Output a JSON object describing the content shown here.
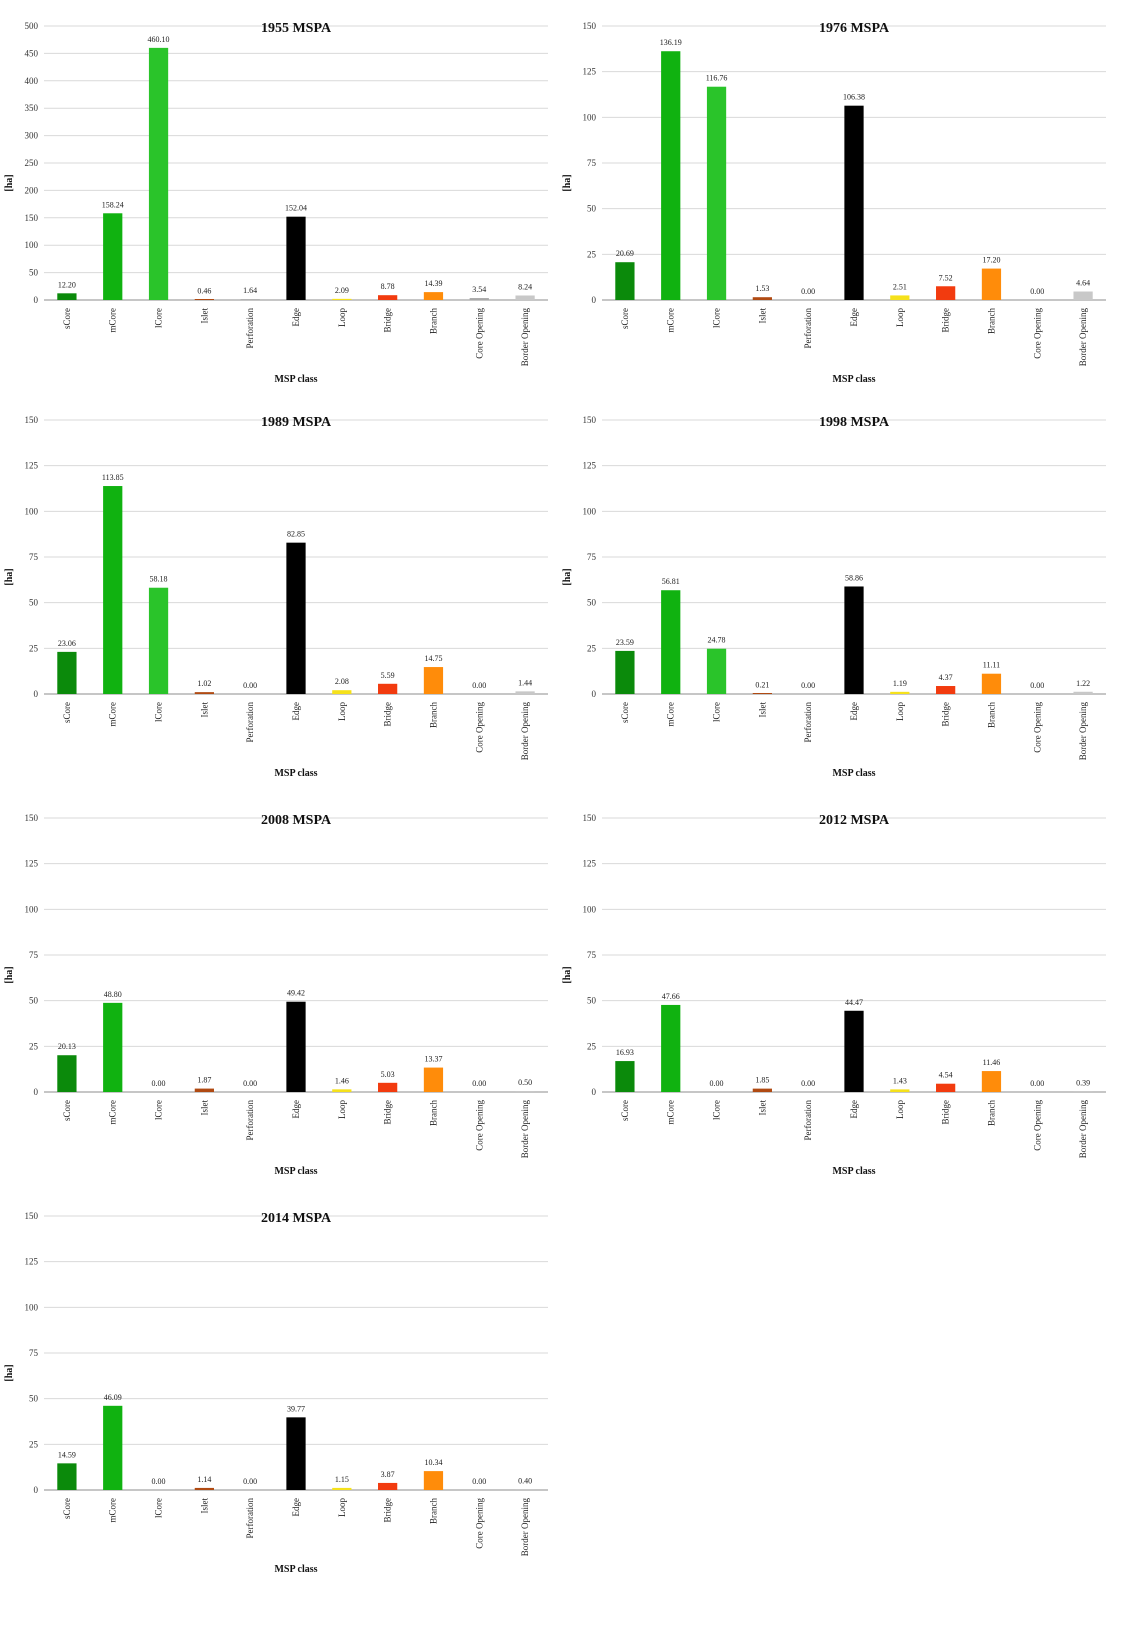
{
  "xlabel": "MSP class",
  "ylabel": "[ha]",
  "categories": [
    "sCore",
    "mCore",
    "lCore",
    "Islet",
    "Perforation",
    "Edge",
    "Loop",
    "Bridge",
    "Branch",
    "Core Opening",
    "Border Opening"
  ],
  "colors": [
    "#0b8a0b",
    "#10b210",
    "#2ac42a",
    "#b04a12",
    "#b3b3b3",
    "#000000",
    "#f5e11b",
    "#f23b0f",
    "#ff8c0a",
    "#a8a8a8",
    "#c8c8c8"
  ],
  "chart_data": [
    {
      "type": "bar",
      "title": "1955 MSPA",
      "ylim": [
        0,
        500
      ],
      "yticks": [
        0,
        50,
        100,
        150,
        200,
        250,
        300,
        350,
        400,
        450,
        500
      ],
      "categories": [
        "sCore",
        "mCore",
        "lCore",
        "Islet",
        "Perforation",
        "Edge",
        "Loop",
        "Bridge",
        "Branch",
        "Core Opening",
        "Border Opening"
      ],
      "values": [
        12.2,
        158.24,
        460.1,
        0.46,
        1.64,
        152.04,
        2.09,
        8.78,
        14.39,
        3.54,
        8.24
      ],
      "labels": [
        "12.20",
        "158.24",
        "460.10",
        "0.46",
        "1.64",
        "152.04",
        "2.09",
        "8.78",
        "14.39",
        "3.54",
        "8.24"
      ],
      "xlabel": "MSP class",
      "ylabel": "[ha]"
    },
    {
      "type": "bar",
      "title": "1976 MSPA",
      "ylim": [
        0,
        150
      ],
      "yticks": [
        0,
        25,
        50,
        75,
        100,
        125,
        150
      ],
      "categories": [
        "sCore",
        "mCore",
        "lCore",
        "Islet",
        "Perforation",
        "Edge",
        "Loop",
        "Bridge",
        "Branch",
        "Core Opening",
        "Border Opening"
      ],
      "values": [
        20.69,
        136.19,
        116.76,
        1.53,
        0.0,
        106.38,
        2.51,
        7.52,
        17.2,
        0.0,
        4.64
      ],
      "labels": [
        "20.69",
        "136.19",
        "116.76",
        "1.53",
        "0.00",
        "106.38",
        "2.51",
        "7.52",
        "17.20",
        "0.00",
        "4.64"
      ],
      "xlabel": "MSP class",
      "ylabel": "[ha]"
    },
    {
      "type": "bar",
      "title": "1989 MSPA",
      "ylim": [
        0,
        150
      ],
      "yticks": [
        0,
        25,
        50,
        75,
        100,
        125,
        150
      ],
      "categories": [
        "sCore",
        "mCore",
        "lCore",
        "Islet",
        "Perforation",
        "Edge",
        "Loop",
        "Bridge",
        "Branch",
        "Core Opening",
        "Border Opening"
      ],
      "values": [
        23.06,
        113.85,
        58.18,
        1.02,
        0.0,
        82.85,
        2.08,
        5.59,
        14.75,
        0.0,
        1.44
      ],
      "labels": [
        "23.06",
        "113.85",
        "58.18",
        "1.02",
        "0.00",
        "82.85",
        "2.08",
        "5.59",
        "14.75",
        "0.00",
        "1.44"
      ],
      "xlabel": "MSP class",
      "ylabel": "[ha]"
    },
    {
      "type": "bar",
      "title": "1998 MSPA",
      "ylim": [
        0,
        150
      ],
      "yticks": [
        0,
        25,
        50,
        75,
        100,
        125,
        150
      ],
      "categories": [
        "sCore",
        "mCore",
        "lCore",
        "Islet",
        "Perforation",
        "Edge",
        "Loop",
        "Bridge",
        "Branch",
        "Core Opening",
        "Border Opening"
      ],
      "values": [
        23.59,
        56.81,
        24.78,
        0.21,
        0.0,
        58.86,
        1.19,
        4.37,
        11.11,
        0.0,
        1.22
      ],
      "labels": [
        "23.59",
        "56.81",
        "24.78",
        "0.21",
        "0.00",
        "58.86",
        "1.19",
        "4.37",
        "11.11",
        "0.00",
        "1.22"
      ],
      "xlabel": "MSP class",
      "ylabel": "[ha]"
    },
    {
      "type": "bar",
      "title": "2008 MSPA",
      "ylim": [
        0,
        150
      ],
      "yticks": [
        0,
        25,
        50,
        75,
        100,
        125,
        150
      ],
      "categories": [
        "sCore",
        "mCore",
        "lCore",
        "Islet",
        "Perforation",
        "Edge",
        "Loop",
        "Bridge",
        "Branch",
        "Core Opening",
        "Border Opening"
      ],
      "values": [
        20.13,
        48.8,
        0.0,
        1.87,
        0.0,
        49.42,
        1.46,
        5.03,
        13.37,
        0.0,
        0.5
      ],
      "labels": [
        "20.13",
        "48.80",
        "0.00",
        "1.87",
        "0.00",
        "49.42",
        "1.46",
        "5.03",
        "13.37",
        "0.00",
        "0.50"
      ],
      "xlabel": "MSP class",
      "ylabel": "[ha]"
    },
    {
      "type": "bar",
      "title": "2012 MSPA",
      "ylim": [
        0,
        150
      ],
      "yticks": [
        0,
        25,
        50,
        75,
        100,
        125,
        150
      ],
      "categories": [
        "sCore",
        "mCore",
        "lCore",
        "Islet",
        "Perforation",
        "Edge",
        "Loop",
        "Bridge",
        "Branch",
        "Core Opening",
        "Border Opening"
      ],
      "values": [
        16.93,
        47.66,
        0.0,
        1.85,
        0.0,
        44.47,
        1.43,
        4.54,
        11.46,
        0.0,
        0.39
      ],
      "labels": [
        "16.93",
        "47.66",
        "0.00",
        "1.85",
        "0.00",
        "44.47",
        "1.43",
        "4.54",
        "11.46",
        "0.00",
        "0.39"
      ],
      "xlabel": "MSP class",
      "ylabel": "[ha]"
    },
    {
      "type": "bar",
      "title": "2014 MSPA",
      "ylim": [
        0,
        150
      ],
      "yticks": [
        0,
        25,
        50,
        75,
        100,
        125,
        150
      ],
      "categories": [
        "sCore",
        "mCore",
        "lCore",
        "Islet",
        "Perforation",
        "Edge",
        "Loop",
        "Bridge",
        "Branch",
        "Core Opening",
        "Border Opening"
      ],
      "values": [
        14.59,
        46.09,
        0.0,
        1.14,
        0.0,
        39.77,
        1.15,
        3.87,
        10.34,
        0.0,
        0.4
      ],
      "labels": [
        "14.59",
        "46.09",
        "0.00",
        "1.14",
        "0.00",
        "39.77",
        "1.15",
        "3.87",
        "10.34",
        "0.00",
        "0.40"
      ],
      "xlabel": "MSP class",
      "ylabel": "[ha]"
    }
  ]
}
